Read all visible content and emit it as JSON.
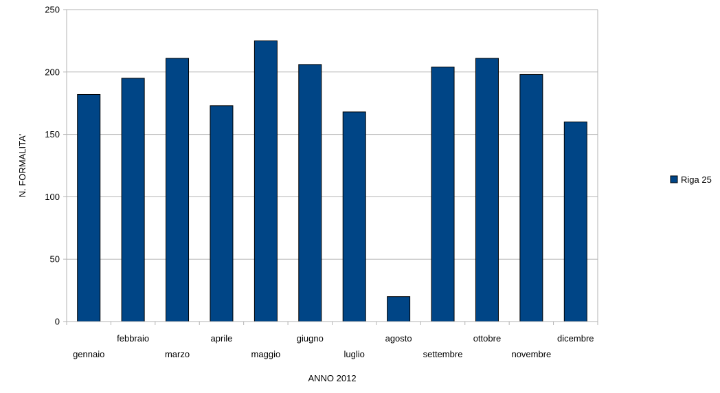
{
  "chart_data": {
    "type": "bar",
    "title": "",
    "xlabel": "ANNO 2012",
    "ylabel": "N. FORMALITA'",
    "ylim": [
      0,
      250
    ],
    "yticks": [
      0,
      50,
      100,
      150,
      200,
      250
    ],
    "categories": [
      "gennaio",
      "febbraio",
      "marzo",
      "aprile",
      "maggio",
      "giugno",
      "luglio",
      "agosto",
      "settembre",
      "ottobre",
      "novembre",
      "dicembre"
    ],
    "series": [
      {
        "name": "Riga 25",
        "color": "#004586",
        "values": [
          182,
          195,
          211,
          173,
          225,
          206,
          168,
          20,
          204,
          211,
          198,
          160
        ]
      }
    ],
    "grid": true,
    "legend": "right"
  }
}
